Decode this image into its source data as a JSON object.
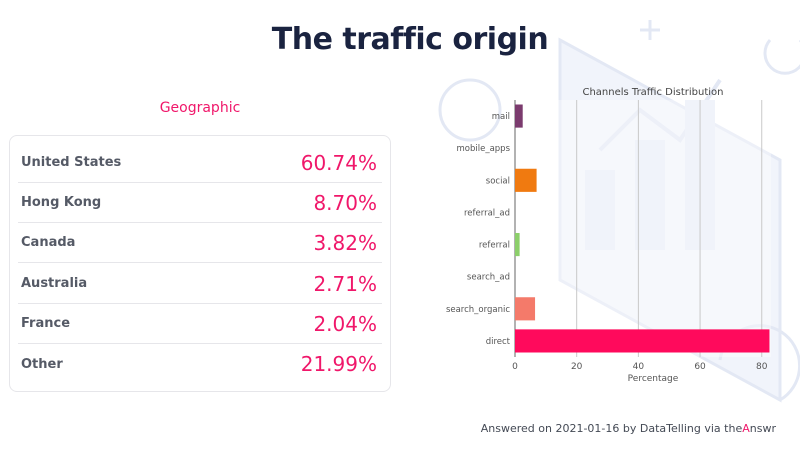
{
  "title": "The traffic origin",
  "geographic": {
    "heading": "Geographic",
    "rows": [
      {
        "country": "United States",
        "value": "60.74%"
      },
      {
        "country": "Hong Kong",
        "value": "8.70%"
      },
      {
        "country": "Canada",
        "value": "3.82%"
      },
      {
        "country": "Australia",
        "value": "2.71%"
      },
      {
        "country": "France",
        "value": "2.04%"
      },
      {
        "country": "Other",
        "value": "21.99%"
      }
    ]
  },
  "chart_data": {
    "type": "bar",
    "orientation": "horizontal",
    "title": "Channels Traffic Distribution",
    "xlabel": "Percentage",
    "ylabel": "",
    "xlim": [
      0,
      83
    ],
    "xticks": [
      0,
      20,
      40,
      60,
      80
    ],
    "grid": true,
    "categories": [
      "mail",
      "mobile_apps",
      "social",
      "referral_ad",
      "referral",
      "search_ad",
      "search_organic",
      "direct"
    ],
    "values": [
      2.5,
      0,
      7,
      0,
      1.5,
      0,
      6.5,
      82.5
    ],
    "colors": [
      "#7b3b6e",
      "#b0308a",
      "#f07a10",
      "#9a7bd0",
      "#8ccf6a",
      "#4aa3c8",
      "#f47a6a",
      "#ff0a5c"
    ]
  },
  "footer": {
    "prefix": "Answered on 2021-01-16 by DataTelling via the",
    "brand_a": "A",
    "brand_rest": "nswr"
  }
}
